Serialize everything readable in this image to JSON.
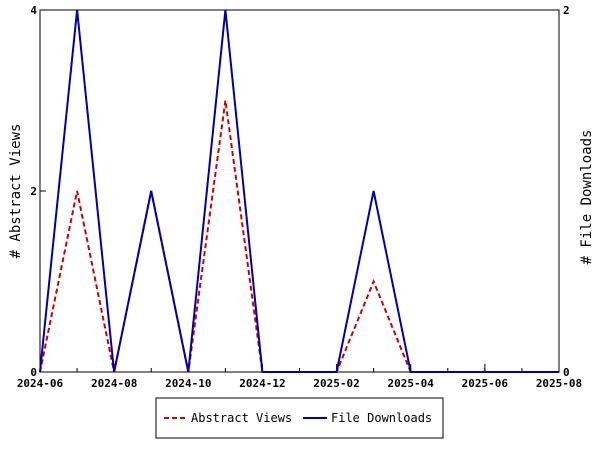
{
  "chart_data": {
    "type": "line",
    "title": "",
    "xlabel": "",
    "ylabel": "# Abstract Views",
    "y2label": "# File Downloads",
    "x": [
      "2024-06",
      "2024-07",
      "2024-08",
      "2024-09",
      "2024-10",
      "2024-11",
      "2024-12",
      "2025-01",
      "2025-02",
      "2025-03",
      "2025-04",
      "2025-05",
      "2025-06",
      "2025-07",
      "2025-08"
    ],
    "x_ticks": [
      "2024-06",
      "2024-08",
      "2024-10",
      "2024-12",
      "2025-02",
      "2025-04",
      "2025-06",
      "2025-08"
    ],
    "ylim": [
      0,
      4
    ],
    "y_ticks": [
      "0",
      "2",
      "4"
    ],
    "y2lim": [
      0,
      2
    ],
    "y2_ticks": [
      "0",
      "2"
    ],
    "grid": false,
    "legend_position": "bottom",
    "series": [
      {
        "name": "Abstract Views",
        "axis": "left",
        "color": "#cc0000",
        "style": "dashed",
        "points": [
          [
            "2024-06",
            0
          ],
          [
            "2024-07",
            2
          ],
          [
            "2024-08",
            0
          ],
          [
            "2024-09",
            2
          ],
          [
            "2024-10",
            0
          ],
          [
            "2024-11",
            3
          ],
          [
            "2024-12",
            0
          ],
          [
            "2025-01",
            0
          ],
          [
            "2025-02",
            0
          ],
          [
            "2025-03",
            1
          ],
          [
            "2025-04",
            0
          ]
        ]
      },
      {
        "name": "File Downloads",
        "axis": "right",
        "color": "#0000aa",
        "style": "solid",
        "points": [
          [
            "2024-06",
            0
          ],
          [
            "2024-07",
            2
          ],
          [
            "2024-08",
            0
          ],
          [
            "2024-09",
            1
          ],
          [
            "2024-10",
            0
          ],
          [
            "2024-11",
            2
          ],
          [
            "2024-12",
            0
          ],
          [
            "2025-01",
            0
          ],
          [
            "2025-02",
            0
          ],
          [
            "2025-03",
            1
          ],
          [
            "2025-04",
            0
          ],
          [
            "2025-05",
            0
          ],
          [
            "2025-06",
            0
          ],
          [
            "2025-07",
            0
          ],
          [
            "2025-08",
            0
          ]
        ]
      }
    ]
  }
}
